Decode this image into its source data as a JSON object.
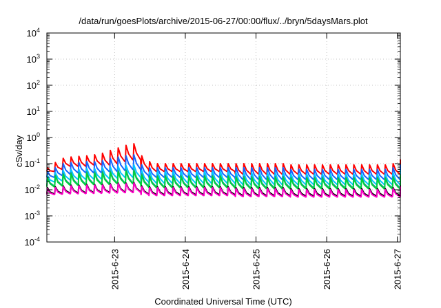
{
  "chart_data": {
    "type": "line",
    "title": "/data/run/goesPlots/archive/2015-06-27/00:00/flux/../bryn/5daysMars.plot",
    "xlabel": "Coordinated Universal Time (UTC)",
    "ylabel": "cSv/day",
    "yscale": "log",
    "ylim": [
      0.0001,
      10000
    ],
    "y_ticks": [
      {
        "value": 0.0001,
        "base": "10",
        "exp": "-4"
      },
      {
        "value": 0.001,
        "base": "10",
        "exp": "-3"
      },
      {
        "value": 0.01,
        "base": "10",
        "exp": "-2"
      },
      {
        "value": 0.1,
        "base": "10",
        "exp": "-1"
      },
      {
        "value": 1,
        "base": "10",
        "exp": "0"
      },
      {
        "value": 10,
        "base": "10",
        "exp": "1"
      },
      {
        "value": 100,
        "base": "10",
        "exp": "2"
      },
      {
        "value": 1000,
        "base": "10",
        "exp": "3"
      },
      {
        "value": 10000,
        "base": "10",
        "exp": "4"
      }
    ],
    "xlim": [
      "2015-06-22T01:00",
      "2015-06-27T01:00"
    ],
    "x_ticks": [
      {
        "value": "2015-06-23T00:00",
        "label": "2015-6-23"
      },
      {
        "value": "2015-06-24T00:00",
        "label": "2015-6-24"
      },
      {
        "value": "2015-06-25T00:00",
        "label": "2015-6-25"
      },
      {
        "value": "2015-06-26T00:00",
        "label": "2015-6-26"
      },
      {
        "value": "2015-06-27T00:00",
        "label": "2015-6-27"
      }
    ],
    "grid": true,
    "legend": "none",
    "pattern": {
      "start": "2015-06-22T01:00",
      "end": "2015-06-27T01:00",
      "cycle_hours": 2.6667
    },
    "series": [
      {
        "color": "#ff0000",
        "peaks": [
          0.07,
          0.11,
          0.16,
          0.18,
          0.19,
          0.2,
          0.22,
          0.25,
          0.32,
          0.4,
          0.5,
          0.58,
          0.2,
          0.12,
          0.1,
          0.1,
          0.1,
          0.1,
          0.1,
          0.1,
          0.1,
          0.1,
          0.1,
          0.1,
          0.1,
          0.1,
          0.1,
          0.1,
          0.1,
          0.1,
          0.1,
          0.09,
          0.09,
          0.09,
          0.09,
          0.09,
          0.09,
          0.09,
          0.09,
          0.09,
          0.09,
          0.09,
          0.09,
          0.09,
          0.1,
          0.1,
          0.1,
          0.1,
          0.1,
          0.1,
          0.12,
          0.12,
          0.14,
          0.14,
          0.14,
          0.12,
          0.12,
          0.12,
          0.12,
          0.12,
          0.12,
          0.12,
          0.12,
          0.12,
          0.12,
          0.12
        ],
        "troughs": [
          0.05,
          0.06,
          0.08,
          0.08,
          0.08,
          0.09,
          0.09,
          0.09,
          0.1,
          0.12,
          0.14,
          0.14,
          0.06,
          0.05,
          0.05,
          0.05,
          0.05,
          0.05,
          0.05,
          0.05,
          0.05,
          0.05,
          0.05,
          0.05,
          0.04,
          0.04,
          0.04,
          0.04,
          0.04,
          0.04,
          0.04,
          0.04,
          0.04,
          0.04,
          0.04,
          0.04,
          0.04,
          0.04,
          0.04,
          0.04,
          0.04,
          0.04,
          0.04,
          0.04,
          0.04,
          0.04,
          0.04,
          0.04,
          0.05,
          0.05,
          0.05,
          0.05,
          0.05,
          0.05,
          0.05,
          0.05,
          0.05,
          0.05,
          0.05,
          0.05,
          0.05,
          0.05,
          0.05,
          0.05,
          0.05,
          0.05
        ]
      },
      {
        "color": "#1464ff",
        "peaks": [
          0.05,
          0.07,
          0.1,
          0.11,
          0.11,
          0.12,
          0.12,
          0.13,
          0.16,
          0.18,
          0.2,
          0.22,
          0.09,
          0.07,
          0.07,
          0.07,
          0.07,
          0.07,
          0.07,
          0.07,
          0.07,
          0.07,
          0.07,
          0.07,
          0.07,
          0.07,
          0.07,
          0.07,
          0.07,
          0.07,
          0.07,
          0.06,
          0.06,
          0.06,
          0.06,
          0.06,
          0.06,
          0.06,
          0.06,
          0.06,
          0.06,
          0.06,
          0.06,
          0.06,
          0.07,
          0.07,
          0.07,
          0.07,
          0.07,
          0.07,
          0.08,
          0.08,
          0.09,
          0.09,
          0.09,
          0.08,
          0.08,
          0.08,
          0.08,
          0.08,
          0.08,
          0.08,
          0.08,
          0.08,
          0.08,
          0.08
        ],
        "troughs": [
          0.03,
          0.035,
          0.04,
          0.045,
          0.045,
          0.045,
          0.045,
          0.05,
          0.05,
          0.055,
          0.06,
          0.06,
          0.035,
          0.03,
          0.03,
          0.03,
          0.03,
          0.03,
          0.03,
          0.03,
          0.03,
          0.03,
          0.03,
          0.03,
          0.025,
          0.025,
          0.025,
          0.025,
          0.025,
          0.025,
          0.025,
          0.025,
          0.025,
          0.025,
          0.025,
          0.025,
          0.025,
          0.025,
          0.025,
          0.025,
          0.025,
          0.025,
          0.025,
          0.025,
          0.025,
          0.025,
          0.025,
          0.025,
          0.03,
          0.03,
          0.03,
          0.03,
          0.03,
          0.03,
          0.03,
          0.03,
          0.03,
          0.03,
          0.03,
          0.03,
          0.03,
          0.03,
          0.03,
          0.03,
          0.03,
          0.03
        ]
      },
      {
        "color": "#00c8ff",
        "peaks": [
          0.035,
          0.045,
          0.055,
          0.06,
          0.06,
          0.065,
          0.065,
          0.07,
          0.075,
          0.08,
          0.085,
          0.09,
          0.055,
          0.05,
          0.05,
          0.05,
          0.05,
          0.05,
          0.05,
          0.05,
          0.05,
          0.05,
          0.05,
          0.05,
          0.045,
          0.045,
          0.045,
          0.045,
          0.045,
          0.045,
          0.045,
          0.04,
          0.04,
          0.04,
          0.04,
          0.04,
          0.04,
          0.04,
          0.04,
          0.04,
          0.04,
          0.04,
          0.04,
          0.04,
          0.045,
          0.045,
          0.045,
          0.045,
          0.045,
          0.045,
          0.05,
          0.05,
          0.055,
          0.055,
          0.055,
          0.05,
          0.05,
          0.05,
          0.05,
          0.05,
          0.05,
          0.05,
          0.05,
          0.05,
          0.05,
          0.05
        ],
        "troughs": [
          0.02,
          0.022,
          0.024,
          0.025,
          0.025,
          0.026,
          0.026,
          0.027,
          0.028,
          0.03,
          0.03,
          0.03,
          0.02,
          0.018,
          0.018,
          0.018,
          0.018,
          0.018,
          0.018,
          0.018,
          0.018,
          0.018,
          0.018,
          0.018,
          0.016,
          0.016,
          0.016,
          0.016,
          0.016,
          0.016,
          0.016,
          0.016,
          0.016,
          0.016,
          0.016,
          0.016,
          0.016,
          0.016,
          0.016,
          0.016,
          0.016,
          0.016,
          0.016,
          0.016,
          0.016,
          0.016,
          0.016,
          0.016,
          0.018,
          0.018,
          0.018,
          0.018,
          0.018,
          0.018,
          0.018,
          0.018,
          0.018,
          0.018,
          0.018,
          0.018,
          0.018,
          0.018,
          0.018,
          0.018,
          0.018,
          0.018
        ]
      },
      {
        "color": "#1e9b8c",
        "peaks": [
          0.03,
          0.036,
          0.042,
          0.045,
          0.045,
          0.048,
          0.048,
          0.05,
          0.052,
          0.055,
          0.058,
          0.06,
          0.04,
          0.035,
          0.035,
          0.035,
          0.035,
          0.035,
          0.035,
          0.035,
          0.035,
          0.035,
          0.035,
          0.035,
          0.032,
          0.032,
          0.032,
          0.032,
          0.032,
          0.032,
          0.032,
          0.03,
          0.03,
          0.03,
          0.03,
          0.03,
          0.03,
          0.03,
          0.03,
          0.03,
          0.03,
          0.03,
          0.03,
          0.03,
          0.032,
          0.032,
          0.032,
          0.032,
          0.032,
          0.032,
          0.035,
          0.035,
          0.038,
          0.038,
          0.038,
          0.035,
          0.035,
          0.035,
          0.035,
          0.035,
          0.035,
          0.035,
          0.035,
          0.035,
          0.035,
          0.035
        ],
        "troughs": [
          0.014,
          0.015,
          0.016,
          0.016,
          0.016,
          0.017,
          0.017,
          0.017,
          0.018,
          0.018,
          0.018,
          0.018,
          0.014,
          0.013,
          0.013,
          0.013,
          0.013,
          0.013,
          0.013,
          0.013,
          0.013,
          0.013,
          0.013,
          0.013,
          0.012,
          0.012,
          0.012,
          0.012,
          0.012,
          0.012,
          0.012,
          0.012,
          0.012,
          0.012,
          0.012,
          0.012,
          0.012,
          0.012,
          0.012,
          0.012,
          0.012,
          0.012,
          0.012,
          0.012,
          0.012,
          0.012,
          0.012,
          0.012,
          0.013,
          0.013,
          0.013,
          0.013,
          0.013,
          0.013,
          0.013,
          0.013,
          0.013,
          0.013,
          0.013,
          0.013,
          0.013,
          0.013,
          0.013,
          0.013,
          0.013,
          0.013
        ]
      },
      {
        "color": "#00d23c",
        "peaks": [
          0.028,
          0.033,
          0.038,
          0.04,
          0.04,
          0.042,
          0.042,
          0.044,
          0.046,
          0.048,
          0.05,
          0.052,
          0.036,
          0.032,
          0.032,
          0.032,
          0.032,
          0.032,
          0.032,
          0.032,
          0.032,
          0.032,
          0.032,
          0.032,
          0.029,
          0.029,
          0.029,
          0.029,
          0.029,
          0.029,
          0.029,
          0.027,
          0.027,
          0.027,
          0.027,
          0.027,
          0.027,
          0.027,
          0.027,
          0.027,
          0.027,
          0.027,
          0.027,
          0.027,
          0.029,
          0.029,
          0.029,
          0.029,
          0.029,
          0.029,
          0.032,
          0.032,
          0.034,
          0.034,
          0.034,
          0.032,
          0.032,
          0.032,
          0.032,
          0.032,
          0.032,
          0.032,
          0.032,
          0.032,
          0.032,
          0.032
        ],
        "troughs": [
          0.013,
          0.014,
          0.015,
          0.015,
          0.015,
          0.016,
          0.016,
          0.016,
          0.017,
          0.017,
          0.017,
          0.017,
          0.013,
          0.012,
          0.012,
          0.012,
          0.012,
          0.012,
          0.012,
          0.012,
          0.012,
          0.012,
          0.012,
          0.012,
          0.011,
          0.011,
          0.011,
          0.011,
          0.011,
          0.011,
          0.011,
          0.011,
          0.011,
          0.011,
          0.011,
          0.011,
          0.011,
          0.011,
          0.011,
          0.011,
          0.011,
          0.011,
          0.011,
          0.011,
          0.011,
          0.011,
          0.011,
          0.011,
          0.012,
          0.012,
          0.012,
          0.012,
          0.012,
          0.012,
          0.012,
          0.012,
          0.012,
          0.012,
          0.012,
          0.012,
          0.012,
          0.012,
          0.012,
          0.012,
          0.012,
          0.012
        ]
      },
      {
        "color": "#000000",
        "peaks": [
          0.012,
          0.013,
          0.014,
          0.015,
          0.015,
          0.016,
          0.016,
          0.016,
          0.017,
          0.018,
          0.018,
          0.019,
          0.014,
          0.013,
          0.013,
          0.013,
          0.013,
          0.013,
          0.013,
          0.013,
          0.013,
          0.013,
          0.013,
          0.013,
          0.012,
          0.012,
          0.012,
          0.012,
          0.012,
          0.012,
          0.012,
          0.011,
          0.011,
          0.011,
          0.011,
          0.011,
          0.011,
          0.011,
          0.011,
          0.011,
          0.011,
          0.011,
          0.011,
          0.011,
          0.012,
          0.012,
          0.012,
          0.012,
          0.012,
          0.012,
          0.013,
          0.013,
          0.014,
          0.014,
          0.014,
          0.013,
          0.013,
          0.013,
          0.013,
          0.013,
          0.013,
          0.013,
          0.013,
          0.013,
          0.013,
          0.013
        ],
        "troughs": [
          0.007,
          0.0072,
          0.0075,
          0.0076,
          0.0076,
          0.0078,
          0.0078,
          0.008,
          0.008,
          0.0082,
          0.0083,
          0.0084,
          0.007,
          0.0065,
          0.0065,
          0.0065,
          0.0065,
          0.0065,
          0.0065,
          0.0065,
          0.0065,
          0.0065,
          0.0065,
          0.0065,
          0.006,
          0.006,
          0.006,
          0.006,
          0.006,
          0.006,
          0.006,
          0.0058,
          0.0058,
          0.0058,
          0.0058,
          0.0058,
          0.0058,
          0.0058,
          0.0058,
          0.0058,
          0.0058,
          0.0058,
          0.0058,
          0.0058,
          0.006,
          0.006,
          0.006,
          0.006,
          0.006,
          0.006,
          0.0065,
          0.0065,
          0.0068,
          0.0068,
          0.0068,
          0.0065,
          0.0065,
          0.0065,
          0.0065,
          0.0065,
          0.0065,
          0.0065,
          0.0065,
          0.0065,
          0.0065,
          0.0065
        ]
      },
      {
        "color": "#ff00c8",
        "peaks": [
          0.011,
          0.012,
          0.013,
          0.014,
          0.014,
          0.015,
          0.015,
          0.015,
          0.016,
          0.017,
          0.017,
          0.018,
          0.013,
          0.012,
          0.012,
          0.012,
          0.012,
          0.012,
          0.012,
          0.012,
          0.012,
          0.012,
          0.012,
          0.012,
          0.011,
          0.011,
          0.011,
          0.011,
          0.011,
          0.011,
          0.011,
          0.01,
          0.01,
          0.01,
          0.01,
          0.01,
          0.01,
          0.01,
          0.01,
          0.01,
          0.01,
          0.01,
          0.01,
          0.01,
          0.011,
          0.011,
          0.011,
          0.011,
          0.011,
          0.011,
          0.012,
          0.012,
          0.013,
          0.013,
          0.013,
          0.012,
          0.012,
          0.012,
          0.012,
          0.012,
          0.012,
          0.012,
          0.012,
          0.012,
          0.012,
          0.012
        ],
        "troughs": [
          0.0065,
          0.0067,
          0.007,
          0.0071,
          0.0071,
          0.0073,
          0.0073,
          0.0075,
          0.0075,
          0.0077,
          0.0078,
          0.0079,
          0.0065,
          0.006,
          0.006,
          0.006,
          0.006,
          0.006,
          0.006,
          0.006,
          0.006,
          0.006,
          0.006,
          0.006,
          0.0055,
          0.0055,
          0.0055,
          0.0055,
          0.0055,
          0.0055,
          0.0055,
          0.0053,
          0.0053,
          0.0053,
          0.0053,
          0.0053,
          0.0053,
          0.0053,
          0.0053,
          0.0053,
          0.0053,
          0.0053,
          0.0053,
          0.0053,
          0.0055,
          0.0055,
          0.0055,
          0.0055,
          0.0055,
          0.0055,
          0.006,
          0.006,
          0.0063,
          0.0063,
          0.0063,
          0.006,
          0.006,
          0.006,
          0.006,
          0.006,
          0.006,
          0.006,
          0.006,
          0.006,
          0.006,
          0.006
        ]
      }
    ]
  }
}
